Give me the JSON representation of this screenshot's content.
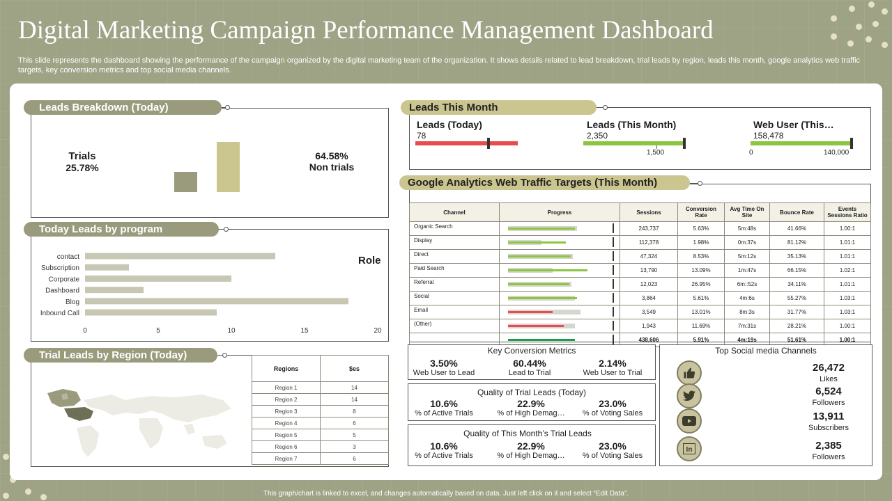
{
  "title": "Digital Marketing Campaign Performance Management Dashboard",
  "description": "This slide represents the dashboard showing the performance of the campaign organized by the digital marketing team of the organization. It shows details related to lead breakdown, trial leads by region, leads this month, google analytics web traffic targets, key conversion metrics and top social media channels.",
  "footer": "This graph/chart is linked to excel, and changes automatically based on data. Just left click on it and select “Edit Data”.",
  "colors": {
    "accent_grey": "#9a9b7d",
    "accent_sand": "#cbc590",
    "bar_green": "#8cc63f",
    "bar_red": "#e84c4c"
  },
  "leads_breakdown": {
    "title": "Leads Breakdown (Today)",
    "trials_label": "Trials",
    "trials_value": "25.78%",
    "non_trials_value": "64.58%",
    "non_trials_label": "Non trials"
  },
  "today_leads": {
    "title": "Today Leads by program",
    "legend": "Role",
    "chart_data": {
      "type": "bar",
      "orientation": "horizontal",
      "categories": [
        "contact",
        "Subscription",
        "Corporate",
        "Dashboard",
        "Blog",
        "Inbound Call"
      ],
      "values": [
        13,
        3,
        10,
        4,
        18,
        9
      ],
      "xlim": [
        0,
        20
      ],
      "xticks": [
        "0",
        "5",
        "10",
        "15",
        "20"
      ]
    }
  },
  "trial_region": {
    "title": "Trial Leads by Region (Today)",
    "col_regions": "Regions",
    "col_value": "$es",
    "rows": [
      {
        "region": "Region 1",
        "value": "14"
      },
      {
        "region": "Region 2",
        "value": "14"
      },
      {
        "region": "Region 3",
        "value": "8"
      },
      {
        "region": "Region 4",
        "value": "6"
      },
      {
        "region": "Region 5",
        "value": "5"
      },
      {
        "region": "Region 6",
        "value": "3"
      },
      {
        "region": "Region 7",
        "value": "6"
      }
    ]
  },
  "leads_month": {
    "title": "Leads This Month",
    "items": [
      {
        "label": "Leads (Today)",
        "value": "78",
        "target": "",
        "end": "",
        "fill": 1.0,
        "color": "#e84c4c"
      },
      {
        "label": "Leads (This Month)",
        "value": "2,350",
        "target": "1,500",
        "end": "",
        "fill": 1.0,
        "color": "#8cc63f"
      },
      {
        "label": "Web User (This…",
        "value": "158,478",
        "target": "0",
        "end": "140,000",
        "fill": 1.0,
        "color": "#8cc63f"
      }
    ]
  },
  "ga": {
    "title": "Google Analytics  Web Traffic Targets (This Month)",
    "headers": {
      "channel": "Channel",
      "progress": "Progress",
      "sessions": "Sessions",
      "conversion": "Conversion Rate",
      "avg_time": "Avg Time On Site",
      "bounce": "Bounce Rate",
      "events": "Events Sessions  Ratio"
    },
    "rows": [
      {
        "channel": "Organic Search",
        "sessions": "243,737",
        "conversion": "5.63%",
        "avg_time": "5m:48s",
        "bounce": "41.66%",
        "events": "1.00:1",
        "target": 0.62,
        "actual": 0.6,
        "color": "#8cc63f"
      },
      {
        "channel": "Display",
        "sessions": "112,378",
        "conversion": "1.98%",
        "avg_time": "0m:37s",
        "bounce": "81.12%",
        "events": "1.01:1",
        "target": 0.3,
        "actual": 0.52,
        "color": "#8cc63f"
      },
      {
        "channel": "Direct",
        "sessions": "47,324",
        "conversion": "8.53%",
        "avg_time": "5m:12s",
        "bounce": "35.13%",
        "events": "1.01:1",
        "target": 0.58,
        "actual": 0.56,
        "color": "#8cc63f"
      },
      {
        "channel": "Paid Search",
        "sessions": "13,790",
        "conversion": "13.09%",
        "avg_time": "1m:47s",
        "bounce": "66.15%",
        "events": "1.02:1",
        "target": 0.4,
        "actual": 0.71,
        "color": "#8cc63f"
      },
      {
        "channel": "Referral",
        "sessions": "12,023",
        "conversion": "26.95%",
        "avg_time": "6m::52s",
        "bounce": "34.11%",
        "events": "1.01:1",
        "target": 0.57,
        "actual": 0.55,
        "color": "#8cc63f"
      },
      {
        "channel": "Social",
        "sessions": "3,864",
        "conversion": "5.61%",
        "avg_time": "4m:6s",
        "bounce": "55.27%",
        "events": "1.03:1",
        "target": 0.6,
        "actual": 0.62,
        "color": "#8cc63f"
      },
      {
        "channel": "Email",
        "sessions": "3,549",
        "conversion": "13.01%",
        "avg_time": "8m:3s",
        "bounce": "31.77%",
        "events": "1.03:1",
        "target": 0.65,
        "actual": 0.4,
        "color": "#e84c4c"
      },
      {
        "channel": "(Other)",
        "sessions": "1,943",
        "conversion": "11.69%",
        "avg_time": "7m:31s",
        "bounce": "28.21%",
        "events": "1.00:1",
        "target": 0.6,
        "actual": 0.5,
        "color": "#e84c4c"
      }
    ],
    "total": {
      "sessions": "438,606",
      "conversion": "5.91%",
      "avg_time": "4m:19s",
      "bounce": "51.61%",
      "events": "1.00:1",
      "actual": 0.6,
      "color": "#1e9e4a"
    }
  },
  "key_conversion": {
    "title": "Key Conversion  Metrics",
    "items": [
      {
        "value": "3.50%",
        "label": "Web User to Lead"
      },
      {
        "value": "60.44%",
        "label": "Lead to Trial"
      },
      {
        "value": "2.14%",
        "label": "Web User to Trial"
      }
    ]
  },
  "quality_today": {
    "title": "Quality of Trial Leads (Today)",
    "items": [
      {
        "value": "10.6%",
        "label": "% of Active Trials"
      },
      {
        "value": "22.9%",
        "label": "% of High Demag…"
      },
      {
        "value": "23.0%",
        "label": "% of Voting Sales"
      }
    ]
  },
  "quality_month": {
    "title": "Quality of This Month’s Trial Leads",
    "items": [
      {
        "value": "10.6%",
        "label": "% of Active Trials"
      },
      {
        "value": "22.9%",
        "label": "% of High Demag…"
      },
      {
        "value": "23.0%",
        "label": "% of Voting Sales"
      }
    ]
  },
  "social": {
    "title": "Top Social media Channels",
    "items": [
      {
        "icon": "thumbs-up-icon",
        "value": "26,472",
        "label": "Likes"
      },
      {
        "icon": "twitter-icon",
        "value": "6,524",
        "label": "Followers"
      },
      {
        "icon": "youtube-icon",
        "value": "13,911",
        "label": "Subscribers"
      },
      {
        "icon": "linkedin-icon",
        "value": "2,385",
        "label": "Followers"
      }
    ]
  }
}
